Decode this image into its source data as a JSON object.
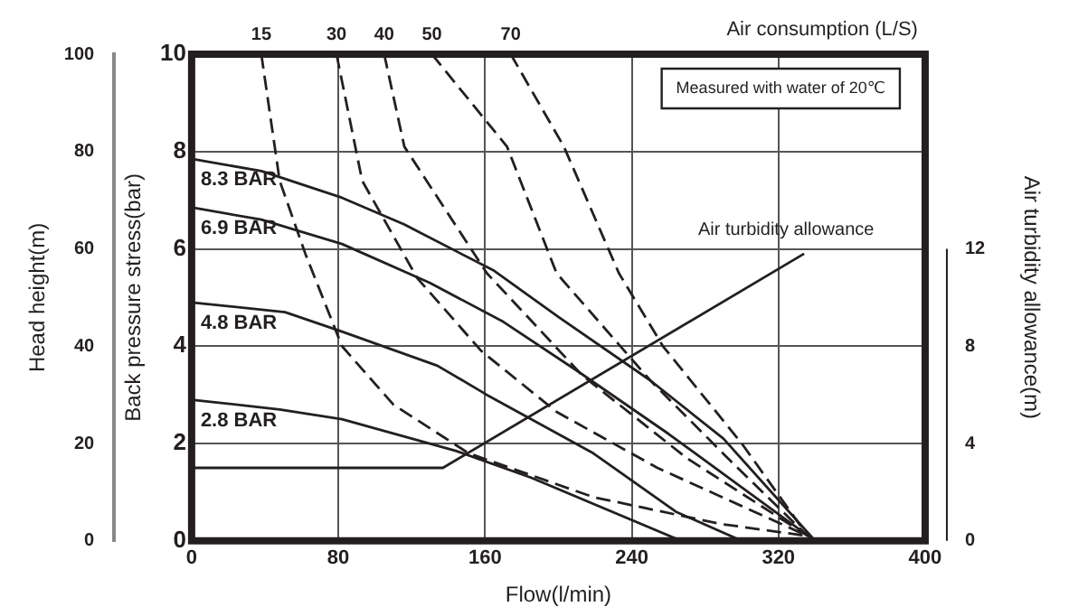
{
  "chart_data": {
    "type": "line",
    "xlabel": "Flow(l/min)",
    "ylabel": "Back pressure stress(bar)",
    "y2label": "Air turbidity allowance(m)",
    "y3label": "Head height(m)",
    "xlim": [
      0,
      400
    ],
    "xticks": [
      0,
      80,
      160,
      240,
      320,
      400
    ],
    "ylim": [
      0,
      10
    ],
    "yticks": [
      0,
      2,
      4,
      6,
      8,
      10
    ],
    "y2lim": [
      0,
      20
    ],
    "y2ticks": [
      0,
      4,
      8,
      12
    ],
    "y3lim": [
      0,
      100
    ],
    "y3ticks": [
      0,
      20,
      40,
      60,
      80,
      100
    ],
    "grid": true,
    "marker": "none",
    "line_style": "solid",
    "annotations": [
      "Air consumption (L/S)",
      "Measured with water of 20℃"
    ],
    "series": [
      {
        "name": "8.3 BAR",
        "color": "#231f20",
        "x": [
          0,
          38,
          82,
          116,
          165,
          200,
          250,
          290,
          340
        ],
        "values": [
          7.85,
          7.6,
          7.05,
          6.5,
          5.55,
          4.6,
          3.3,
          2.1,
          0
        ]
      },
      {
        "name": "6.9 BAR",
        "color": "#231f20",
        "x": [
          0,
          38,
          82,
          130,
          170,
          210,
          260,
          300,
          340
        ],
        "values": [
          6.85,
          6.6,
          6.1,
          5.3,
          4.5,
          3.5,
          2.2,
          1.1,
          0
        ]
      },
      {
        "name": "4.8 BAR",
        "color": "#231f20",
        "x": [
          0,
          51,
          82,
          134,
          161,
          219,
          264,
          300
        ],
        "values": [
          4.9,
          4.7,
          4.3,
          3.6,
          3.0,
          1.8,
          0.6,
          0
        ]
      },
      {
        "name": "2.8 BAR",
        "color": "#231f20",
        "x": [
          0,
          48,
          82,
          144,
          185,
          267
        ],
        "values": [
          2.9,
          2.7,
          2.5,
          1.85,
          1.3,
          0
        ]
      },
      {
        "name": "15",
        "color": "#231f20",
        "line_style": "dashed",
        "x": [
          38,
          48,
          62,
          82,
          110,
          151,
          219,
          288,
          336
        ],
        "values": [
          10,
          7.4,
          5.9,
          4.0,
          2.8,
          1.8,
          0.9,
          0.35,
          0.1
        ]
      },
      {
        "name": "30",
        "color": "#231f20",
        "line_style": "dashed",
        "x": [
          79,
          93,
          123,
          158,
          199,
          254,
          336
        ],
        "values": [
          10,
          7.4,
          5.4,
          3.9,
          2.65,
          1.5,
          0.1
        ]
      },
      {
        "name": "40",
        "color": "#231f20",
        "line_style": "dashed",
        "x": [
          105,
          116,
          161,
          213,
          270,
          336
        ],
        "values": [
          10,
          8.1,
          5.5,
          3.4,
          1.7,
          0.1
        ]
      },
      {
        "name": "50",
        "color": "#231f20",
        "line_style": "dashed",
        "x": [
          131,
          172,
          199,
          250,
          295,
          336
        ],
        "values": [
          10,
          8.1,
          5.5,
          3.3,
          1.6,
          0.1
        ]
      },
      {
        "name": "70",
        "color": "#231f20",
        "line_style": "dashed",
        "x": [
          174,
          203,
          233,
          257,
          300,
          336
        ],
        "values": [
          10,
          8.1,
          5.5,
          4.0,
          2.0,
          0.1
        ]
      },
      {
        "name": "Air turbidity allowance",
        "color": "#231f20",
        "axis": "y2",
        "x": [
          0,
          137,
          334
        ],
        "values": [
          3.0,
          3.0,
          11.8
        ]
      }
    ]
  }
}
